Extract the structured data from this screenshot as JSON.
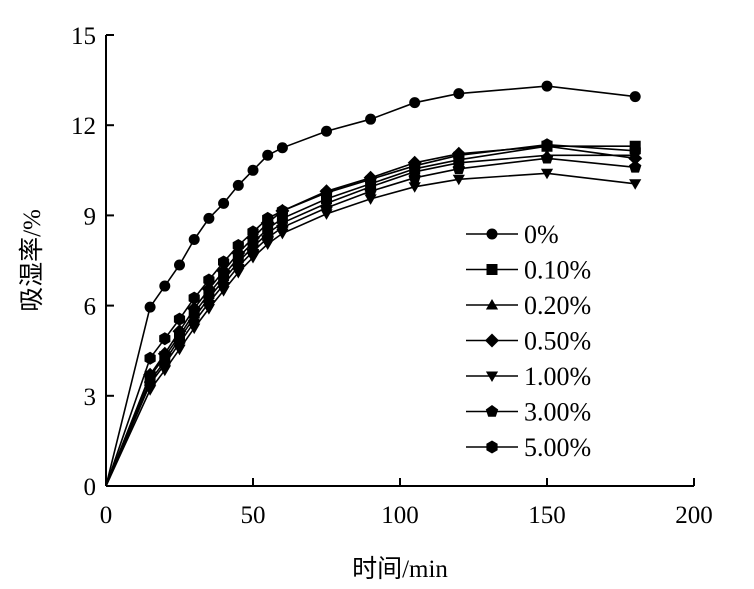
{
  "chart_data": {
    "type": "line",
    "title": "",
    "xlabel": "时间/min",
    "ylabel": "吸湿率/%",
    "xlim": [
      0,
      200
    ],
    "ylim": [
      0,
      15
    ],
    "xticks": [
      0,
      50,
      100,
      150,
      200
    ],
    "yticks": [
      0,
      3,
      6,
      9,
      12,
      15
    ],
    "grid": false,
    "legend_position": "right",
    "x": [
      0,
      15,
      20,
      25,
      30,
      35,
      40,
      45,
      50,
      55,
      60,
      75,
      90,
      105,
      120,
      150,
      180
    ],
    "series": [
      {
        "name": "0%",
        "marker": "circle",
        "values": [
          0,
          5.95,
          6.65,
          7.35,
          8.2,
          8.9,
          9.4,
          10.0,
          10.5,
          11.0,
          11.25,
          11.8,
          12.2,
          12.75,
          13.05,
          13.3,
          12.95
        ]
      },
      {
        "name": "0.10%",
        "marker": "square",
        "values": [
          0,
          3.65,
          4.3,
          5.0,
          5.75,
          6.4,
          7.0,
          7.6,
          8.1,
          8.55,
          8.9,
          9.55,
          10.05,
          10.55,
          10.85,
          11.3,
          11.3
        ]
      },
      {
        "name": "0.20%",
        "marker": "triangle-up",
        "values": [
          0,
          3.5,
          4.15,
          4.9,
          5.6,
          6.25,
          6.85,
          7.45,
          7.95,
          8.4,
          8.75,
          9.4,
          9.95,
          10.45,
          10.75,
          11.0,
          11.0
        ]
      },
      {
        "name": "0.50%",
        "marker": "diamond",
        "values": [
          0,
          3.7,
          4.4,
          5.15,
          5.9,
          6.55,
          7.15,
          7.75,
          8.25,
          8.75,
          9.15,
          9.8,
          10.25,
          10.75,
          11.05,
          11.3,
          10.9
        ]
      },
      {
        "name": "1.00%",
        "marker": "triangle-down",
        "values": [
          0,
          3.2,
          3.85,
          4.55,
          5.25,
          5.9,
          6.5,
          7.1,
          7.6,
          8.05,
          8.4,
          9.05,
          9.55,
          9.95,
          10.2,
          10.4,
          10.05
        ]
      },
      {
        "name": "3.00%",
        "marker": "pentagon",
        "values": [
          0,
          3.4,
          4.05,
          4.75,
          5.45,
          6.1,
          6.7,
          7.3,
          7.8,
          8.25,
          8.6,
          9.25,
          9.8,
          10.25,
          10.55,
          10.9,
          10.6
        ]
      },
      {
        "name": "5.00%",
        "marker": "hexagon",
        "values": [
          0,
          4.25,
          4.9,
          5.55,
          6.25,
          6.85,
          7.45,
          8.0,
          8.45,
          8.9,
          9.15,
          9.75,
          10.2,
          10.65,
          11.0,
          11.35,
          11.15
        ]
      }
    ]
  }
}
